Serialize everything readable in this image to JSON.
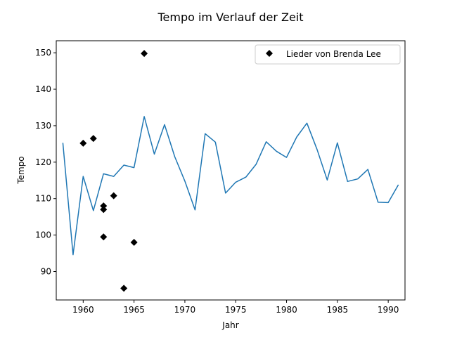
{
  "chart_data": {
    "type": "line",
    "title": "Tempo im Verlauf der Zeit",
    "xlabel": "Jahr",
    "ylabel": "Tempo",
    "xlim": [
      1957.35,
      1991.65
    ],
    "ylim": [
      82.2,
      153.3
    ],
    "xticks": [
      1960,
      1965,
      1970,
      1975,
      1980,
      1985,
      1990
    ],
    "yticks": [
      90,
      100,
      110,
      120,
      130,
      140,
      150
    ],
    "grid": false,
    "legend_position": "top-right",
    "line_color": "#1f77b4",
    "marker_color": "#000000",
    "series": [
      {
        "kind": "line",
        "x": [
          1958,
          1959,
          1960,
          1961,
          1962,
          1963,
          1964,
          1965,
          1966,
          1967,
          1968,
          1969,
          1970,
          1971,
          1972,
          1973,
          1974,
          1975,
          1976,
          1977,
          1978,
          1979,
          1980,
          1981,
          1982,
          1983,
          1984,
          1985,
          1986,
          1987,
          1988,
          1989,
          1990,
          1991
        ],
        "y": [
          125.3,
          94.6,
          116.1,
          106.7,
          116.8,
          116.1,
          119.2,
          118.5,
          132.5,
          122.2,
          130.3,
          121.5,
          114.8,
          106.9,
          127.8,
          125.5,
          111.5,
          114.5,
          115.9,
          119.4,
          125.6,
          123.0,
          121.3,
          126.9,
          130.7,
          123.5,
          115.1,
          125.3,
          114.7,
          115.4,
          118.0,
          109.0,
          108.9,
          113.8
        ]
      },
      {
        "kind": "scatter",
        "name": "Lieder von Brenda Lee",
        "marker": "diamond",
        "x": [
          1960,
          1961,
          1962,
          1962,
          1962,
          1963,
          1964,
          1965,
          1966
        ],
        "y": [
          125.2,
          126.5,
          108.0,
          107.0,
          99.5,
          110.8,
          85.4,
          98.0,
          149.8
        ]
      }
    ]
  }
}
